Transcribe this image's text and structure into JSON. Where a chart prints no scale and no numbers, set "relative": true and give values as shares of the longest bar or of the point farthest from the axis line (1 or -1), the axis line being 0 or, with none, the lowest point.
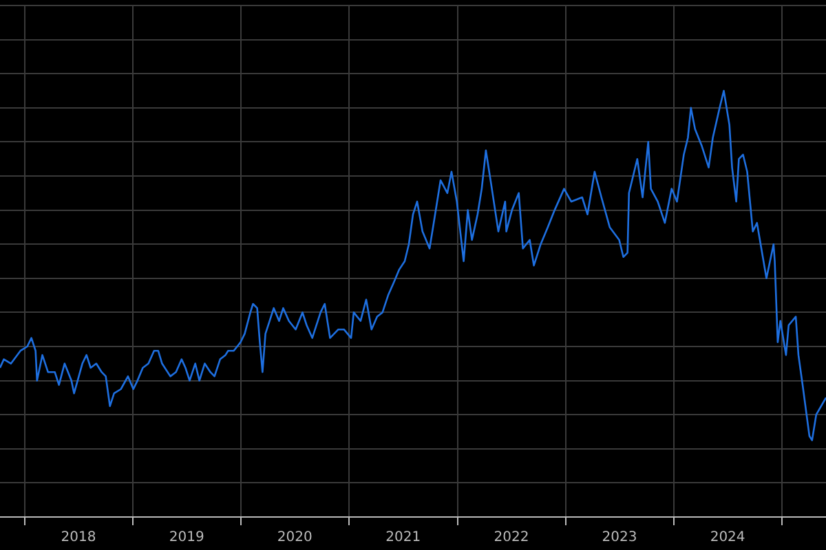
{
  "chart_data": {
    "type": "line",
    "relative": true,
    "grid": true,
    "line_style": "solid",
    "xlim": [
      "2017-10-10",
      "2025-05-29"
    ],
    "xticks": [
      {
        "value": "2018-01-01",
        "label": null
      },
      {
        "value": "2018-07-02",
        "label": "2018"
      },
      {
        "value": "2019-01-01",
        "label": null
      },
      {
        "value": "2019-07-02",
        "label": "2019"
      },
      {
        "value": "2020-01-01",
        "label": null
      },
      {
        "value": "2020-07-01",
        "label": "2020"
      },
      {
        "value": "2021-01-01",
        "label": null
      },
      {
        "value": "2021-07-02",
        "label": "2021"
      },
      {
        "value": "2022-01-01",
        "label": null
      },
      {
        "value": "2022-07-02",
        "label": "2022"
      },
      {
        "value": "2023-01-01",
        "label": null
      },
      {
        "value": "2023-07-02",
        "label": "2023"
      },
      {
        "value": "2024-01-01",
        "label": null
      },
      {
        "value": "2024-07-01",
        "label": "2024"
      },
      {
        "value": "2025-01-01",
        "label": null
      }
    ],
    "series": [
      {
        "color": "#1e6fe0",
        "x": [
          "2017-10-10",
          "2017-10-23",
          "2017-11-16",
          "2017-12-18",
          "2018-01-10",
          "2018-01-24",
          "2018-02-07",
          "2018-02-12",
          "2018-03-02",
          "2018-03-21",
          "2018-04-13",
          "2018-04-27",
          "2018-05-16",
          "2018-06-08",
          "2018-06-17",
          "2018-07-15",
          "2018-07-29",
          "2018-08-12",
          "2018-08-31",
          "2018-09-18",
          "2018-10-02",
          "2018-10-16",
          "2018-10-30",
          "2018-11-22",
          "2018-12-16",
          "2019-01-03",
          "2019-01-17",
          "2019-02-04",
          "2019-02-23",
          "2019-03-14",
          "2019-03-28",
          "2019-04-10",
          "2019-05-08",
          "2019-05-27",
          "2019-06-15",
          "2019-06-28",
          "2019-07-12",
          "2019-07-31",
          "2019-08-14",
          "2019-09-01",
          "2019-09-20",
          "2019-10-04",
          "2019-10-23",
          "2019-11-10",
          "2019-11-19",
          "2019-12-08",
          "2019-12-31",
          "2020-01-14",
          "2020-02-02",
          "2020-02-11",
          "2020-02-25",
          "2020-03-05",
          "2020-03-14",
          "2020-03-24",
          "2020-04-07",
          "2020-04-21",
          "2020-05-09",
          "2020-05-23",
          "2020-06-11",
          "2020-07-04",
          "2020-07-27",
          "2020-08-10",
          "2020-08-29",
          "2020-09-26",
          "2020-10-10",
          "2020-10-28",
          "2020-11-25",
          "2020-12-14",
          "2021-01-07",
          "2021-01-16",
          "2021-02-08",
          "2021-02-27",
          "2021-03-17",
          "2021-04-05",
          "2021-04-23",
          "2021-05-12",
          "2021-05-31",
          "2021-06-18",
          "2021-07-07",
          "2021-07-21",
          "2021-08-04",
          "2021-08-18",
          "2021-09-05",
          "2021-09-29",
          "2021-10-13",
          "2021-11-05",
          "2021-11-28",
          "2021-12-12",
          "2021-12-30",
          "2022-01-22",
          "2022-02-05",
          "2022-02-19",
          "2022-03-10",
          "2022-03-24",
          "2022-04-07",
          "2022-04-25",
          "2022-05-19",
          "2022-06-11",
          "2022-06-15",
          "2022-07-04",
          "2022-07-27",
          "2022-08-10",
          "2022-09-02",
          "2022-09-16",
          "2022-10-09",
          "2022-11-02",
          "2022-11-25",
          "2022-12-27",
          "2023-01-20",
          "2023-02-26",
          "2023-03-16",
          "2023-04-09",
          "2023-05-02",
          "2023-05-30",
          "2023-07-01",
          "2023-07-15",
          "2023-07-29",
          "2023-08-03",
          "2023-08-17",
          "2023-08-31",
          "2023-09-18",
          "2023-10-07",
          "2023-10-16",
          "2023-11-08",
          "2023-12-02",
          "2023-12-25",
          "2024-01-12",
          "2024-02-04",
          "2024-02-18",
          "2024-02-28",
          "2024-03-13",
          "2024-04-05",
          "2024-04-28",
          "2024-05-12",
          "2024-06-04",
          "2024-06-18",
          "2024-07-07",
          "2024-07-16",
          "2024-07-30",
          "2024-08-08",
          "2024-08-22",
          "2024-09-05",
          "2024-09-24",
          "2024-10-08",
          "2024-11-09",
          "2024-12-03",
          "2024-12-07",
          "2024-12-17",
          "2024-12-26",
          "2025-01-14",
          "2025-01-23",
          "2025-02-16",
          "2025-02-25",
          "2025-03-11",
          "2025-04-03",
          "2025-04-12",
          "2025-04-26",
          "2025-05-29"
        ],
        "values": [
          0.35,
          0.37,
          0.36,
          0.39,
          0.4,
          0.42,
          0.39,
          0.32,
          0.38,
          0.34,
          0.34,
          0.31,
          0.36,
          0.32,
          0.29,
          0.36,
          0.38,
          0.35,
          0.36,
          0.34,
          0.33,
          0.26,
          0.29,
          0.3,
          0.33,
          0.3,
          0.32,
          0.35,
          0.36,
          0.39,
          0.39,
          0.36,
          0.33,
          0.34,
          0.37,
          0.35,
          0.32,
          0.36,
          0.32,
          0.36,
          0.34,
          0.33,
          0.37,
          0.38,
          0.39,
          0.39,
          0.41,
          0.43,
          0.48,
          0.5,
          0.49,
          0.41,
          0.34,
          0.43,
          0.46,
          0.49,
          0.46,
          0.49,
          0.46,
          0.44,
          0.48,
          0.45,
          0.42,
          0.48,
          0.5,
          0.42,
          0.44,
          0.44,
          0.42,
          0.48,
          0.46,
          0.51,
          0.44,
          0.47,
          0.48,
          0.52,
          0.55,
          0.58,
          0.6,
          0.64,
          0.71,
          0.74,
          0.67,
          0.63,
          0.69,
          0.79,
          0.76,
          0.81,
          0.74,
          0.6,
          0.72,
          0.65,
          0.71,
          0.77,
          0.86,
          0.78,
          0.67,
          0.74,
          0.67,
          0.72,
          0.76,
          0.63,
          0.65,
          0.59,
          0.64,
          0.68,
          0.72,
          0.77,
          0.74,
          0.75,
          0.71,
          0.81,
          0.75,
          0.68,
          0.65,
          0.61,
          0.62,
          0.76,
          0.8,
          0.84,
          0.75,
          0.88,
          0.77,
          0.74,
          0.69,
          0.77,
          0.74,
          0.85,
          0.89,
          0.96,
          0.91,
          0.87,
          0.82,
          0.89,
          0.96,
          1.0,
          0.92,
          0.82,
          0.74,
          0.84,
          0.85,
          0.81,
          0.67,
          0.69,
          0.56,
          0.64,
          0.6,
          0.41,
          0.46,
          0.38,
          0.45,
          0.47,
          0.38,
          0.31,
          0.19,
          0.18,
          0.24,
          0.28
        ]
      }
    ]
  }
}
